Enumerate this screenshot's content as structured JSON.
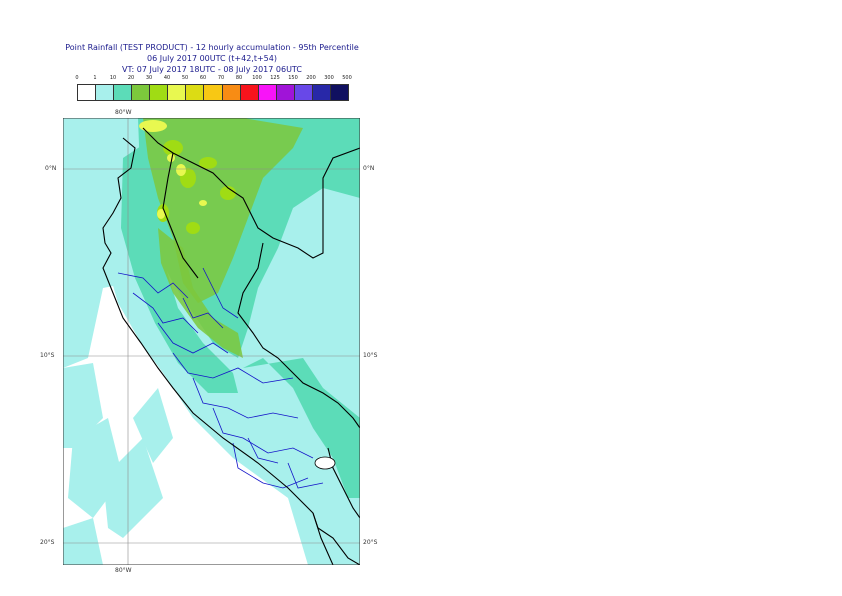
{
  "title": {
    "line1": "Point Rainfall (TEST PRODUCT) - 12 hourly accumulation - 95th Percentile",
    "line2": "06 July 2017 00UTC (t+42,t+54)",
    "line3": "VT: 07 July 2017 18UTC - 08 July 2017 06UTC"
  },
  "legend": {
    "ticks": [
      "0",
      "1",
      "10",
      "20",
      "30",
      "40",
      "50",
      "60",
      "70",
      "80",
      "100",
      "125",
      "150",
      "200",
      "300",
      "500"
    ],
    "colors": [
      "#ffffff",
      "#a8f0ec",
      "#5cdcb8",
      "#7cc83c",
      "#a0dc14",
      "#e8f850",
      "#dcdc14",
      "#f8c814",
      "#f88c14",
      "#f8141c",
      "#f814f8",
      "#a014d8",
      "#6848e8",
      "#2828a8",
      "#101060"
    ]
  },
  "axes": {
    "top_lon": "80°W",
    "bottom_lon": "80°W",
    "lat_labels": [
      "0°N",
      "10°S",
      "20°S"
    ]
  },
  "palette": {
    "ocean": "#a8f0ec",
    "land_light": "#a8f0ec",
    "teal": "#5cdcb8",
    "green": "#7cc83c",
    "lime": "#a0dc14",
    "yellow": "#e8f850",
    "border_national": "#000000",
    "border_regional": "#1414c8",
    "graticule": "#8c8c8c"
  }
}
